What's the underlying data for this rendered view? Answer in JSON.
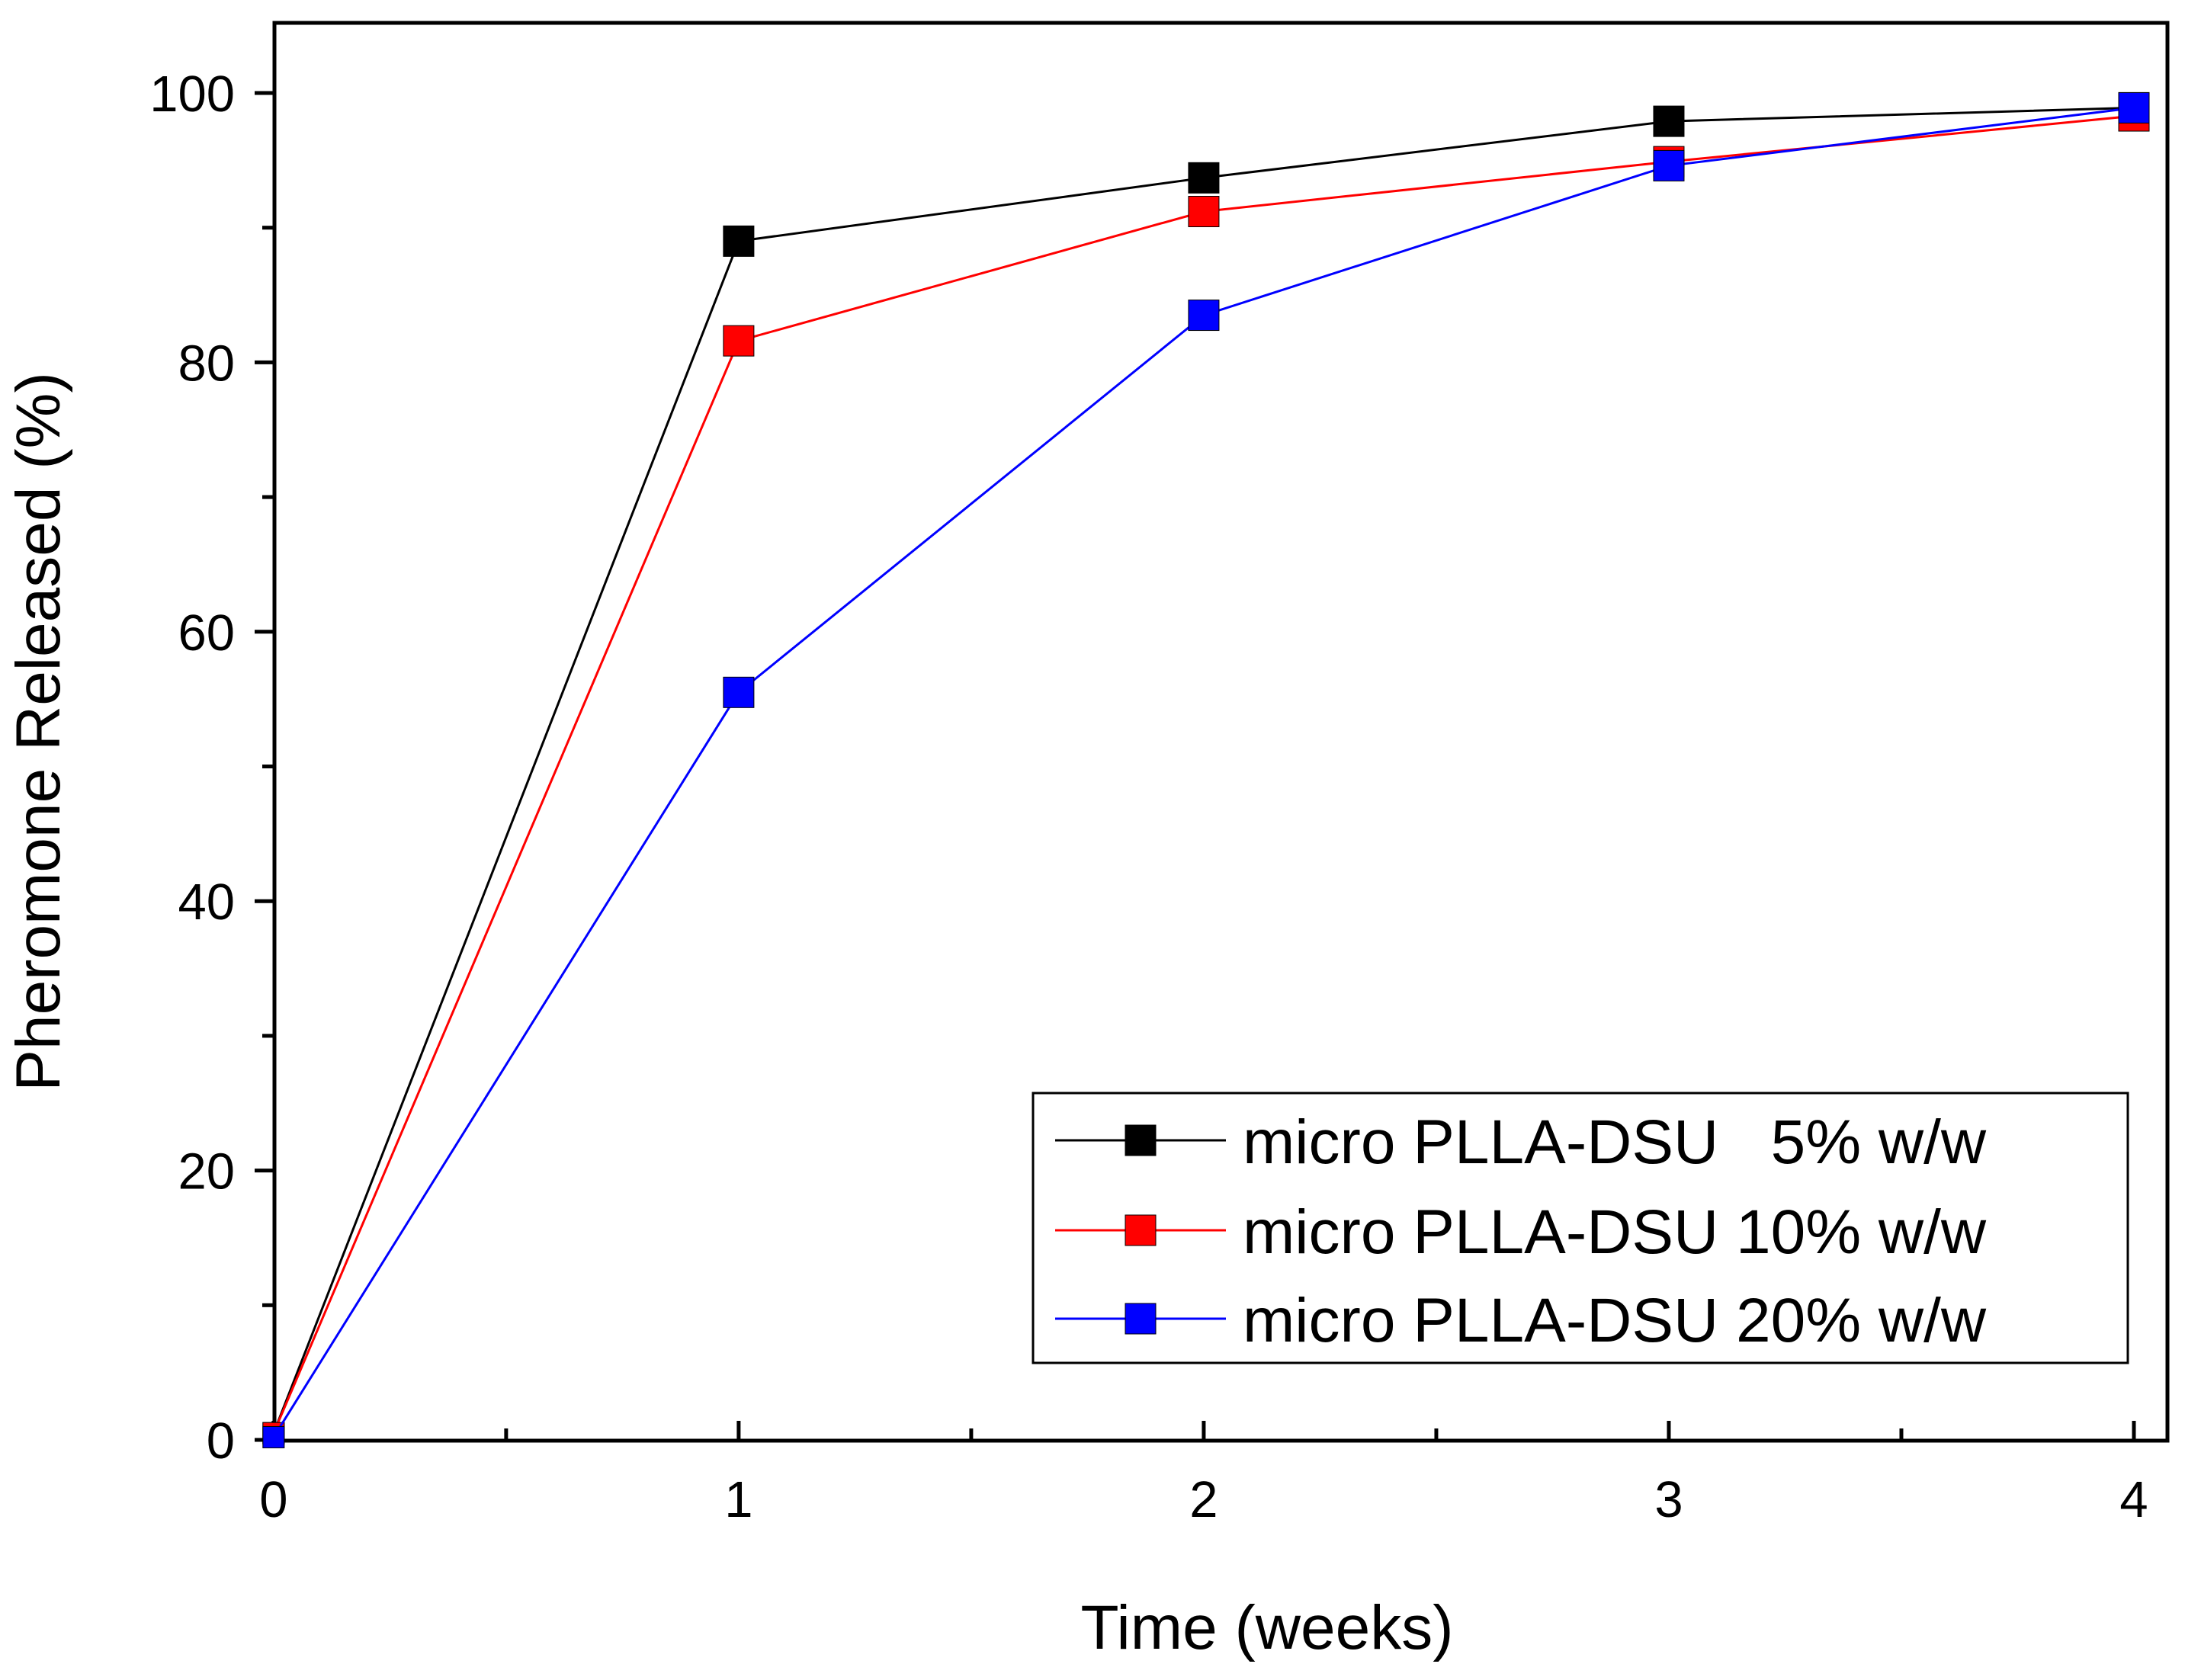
{
  "chart_data": {
    "type": "line",
    "title": "",
    "xlabel": "Time (weeks)",
    "ylabel": "Pheromone Released (%)",
    "xlim": [
      0,
      4
    ],
    "ylim": [
      0,
      100
    ],
    "x_ticks": [
      0,
      1,
      2,
      3,
      4
    ],
    "x_tick_labels": [
      "0",
      "1",
      "2",
      "3",
      "4"
    ],
    "x_minor_ticks": [
      0.5,
      1.5,
      2.5,
      3.5
    ],
    "y_ticks": [
      0,
      20,
      40,
      60,
      80,
      100
    ],
    "y_tick_labels": [
      "0",
      "20",
      "40",
      "60",
      "80",
      "100"
    ],
    "y_minor_ticks": [
      10,
      30,
      50,
      70,
      90
    ],
    "grid": false,
    "legend_position": "bottom-right",
    "x": [
      0,
      1,
      2,
      3,
      4
    ],
    "series": [
      {
        "name": "micro PLLA-DSU   5% w/w",
        "color": "#000000",
        "marker": "square",
        "values": [
          0.5,
          89,
          93.7,
          97.9,
          98.9
        ]
      },
      {
        "name": "micro PLLA-DSU 10% w/w",
        "color": "#ff0000",
        "marker": "square",
        "values": [
          0.5,
          81.6,
          91.2,
          94.9,
          98.3
        ]
      },
      {
        "name": "micro PLLA-DSU 20% w/w",
        "color": "#0000ff",
        "marker": "square",
        "values": [
          0.2,
          55.5,
          83.5,
          94.6,
          98.9
        ]
      }
    ]
  }
}
